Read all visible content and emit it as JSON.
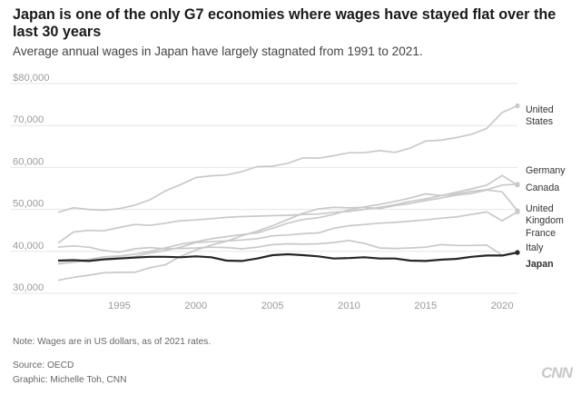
{
  "header": {
    "title": "Japan is one of the only G7 economies where wages have stayed flat over the last 30 years",
    "subtitle": "Average annual wages in Japan have largely stagnated from 1991 to 2021."
  },
  "footer": {
    "note": "Note: Wages are in US dollars, as of 2021 rates.",
    "source": "Source: OECD",
    "credit": "Graphic: Michelle Toh, CNN",
    "logo": "CNN"
  },
  "colors": {
    "highlight": "#262626",
    "other": "#c9c9c9",
    "grid": "#e6e6e6",
    "axis_text": "#9a9a9a"
  },
  "chart_data": {
    "type": "line",
    "title": "Japan is one of the only G7 economies where wages have stayed flat over the last 30 years",
    "subtitle": "Average annual wages in Japan have largely stagnated from 1991 to 2021.",
    "xlabel": "",
    "ylabel": "",
    "x": [
      1991,
      1992,
      1993,
      1994,
      1995,
      1996,
      1997,
      1998,
      1999,
      2000,
      2001,
      2002,
      2003,
      2004,
      2005,
      2006,
      2007,
      2008,
      2009,
      2010,
      2011,
      2012,
      2013,
      2014,
      2015,
      2016,
      2017,
      2018,
      2019,
      2020,
      2021
    ],
    "xlim": [
      1991,
      2021
    ],
    "ylim": [
      30000,
      80000
    ],
    "x_ticks": [
      1995,
      2000,
      2005,
      2010,
      2015,
      2020
    ],
    "y_ticks": [
      30000,
      40000,
      50000,
      60000,
      70000,
      80000
    ],
    "y_tick_labels": [
      "30,000",
      "40,000",
      "50,000",
      "60,000",
      "70,000",
      "$80,000"
    ],
    "grid": true,
    "legend": "direct labels at line ends (right)",
    "series": [
      {
        "name": "United States",
        "label_lines": [
          "United",
          "States"
        ],
        "highlight": false,
        "values": [
          49300,
          50400,
          50000,
          49800,
          50200,
          51000,
          52300,
          54400,
          55900,
          57600,
          58000,
          58200,
          59000,
          60200,
          60300,
          61000,
          62300,
          62200,
          62800,
          63500,
          63500,
          64000,
          63600,
          64600,
          66300,
          66500,
          67100,
          67900,
          69300,
          73100,
          74700
        ]
      },
      {
        "name": "Germany",
        "label_lines": [
          "Germany"
        ],
        "highlight": false,
        "values": [
          42000,
          44600,
          45000,
          44900,
          45700,
          46400,
          46200,
          46700,
          47300,
          47500,
          47800,
          48100,
          48300,
          48400,
          48500,
          48600,
          48800,
          48900,
          49300,
          49500,
          50000,
          50500,
          51100,
          51900,
          52500,
          53300,
          53700,
          54300,
          54700,
          55800,
          56000
        ]
      },
      {
        "name": "Canada",
        "label_lines": [
          "Canada"
        ],
        "highlight": false,
        "values": [
          37100,
          37500,
          38100,
          38700,
          38900,
          39300,
          40000,
          40800,
          41700,
          42300,
          43000,
          43500,
          44000,
          44400,
          45500,
          46700,
          47600,
          48000,
          48800,
          49900,
          50600,
          51200,
          51900,
          52700,
          53700,
          53300,
          54100,
          54900,
          55800,
          58100,
          55800
        ]
      },
      {
        "name": "United Kingdom",
        "label_lines": [
          "United",
          "Kingdom"
        ],
        "highlight": false,
        "values": [
          33100,
          33800,
          34300,
          34900,
          35000,
          35000,
          36100,
          36800,
          38800,
          40300,
          41500,
          42400,
          43700,
          44800,
          46100,
          47600,
          49100,
          50100,
          50500,
          50400,
          50500,
          50200,
          50900,
          51400,
          52100,
          52700,
          53400,
          53800,
          54600,
          54200,
          49700
        ]
      },
      {
        "name": "France",
        "label_lines": [
          "France"
        ],
        "highlight": false,
        "values": [
          37000,
          37400,
          37800,
          38200,
          38500,
          38700,
          39600,
          40200,
          41000,
          42100,
          42300,
          42500,
          42700,
          43000,
          43700,
          43900,
          44200,
          44400,
          45500,
          46100,
          46400,
          46700,
          46900,
          47200,
          47500,
          47900,
          48200,
          48800,
          49400,
          47300,
          49400
        ]
      },
      {
        "name": "Italy",
        "label_lines": [
          "Italy"
        ],
        "highlight": false,
        "values": [
          41000,
          41300,
          41000,
          40200,
          39800,
          40600,
          40900,
          40600,
          40700,
          40800,
          41000,
          40900,
          40600,
          41000,
          41600,
          41800,
          41700,
          41800,
          42100,
          42600,
          41900,
          40800,
          40700,
          40800,
          41000,
          41600,
          41400,
          41400,
          41500,
          39100,
          39900
        ]
      },
      {
        "name": "Japan",
        "label_lines": [
          "Japan"
        ],
        "highlight": true,
        "values": [
          37800,
          37900,
          37700,
          38100,
          38300,
          38500,
          38700,
          38700,
          38600,
          38800,
          38600,
          37800,
          37700,
          38300,
          39100,
          39300,
          39100,
          38800,
          38300,
          38400,
          38600,
          38300,
          38300,
          37800,
          37700,
          38000,
          38200,
          38700,
          39000,
          39000,
          39700
        ]
      }
    ]
  }
}
